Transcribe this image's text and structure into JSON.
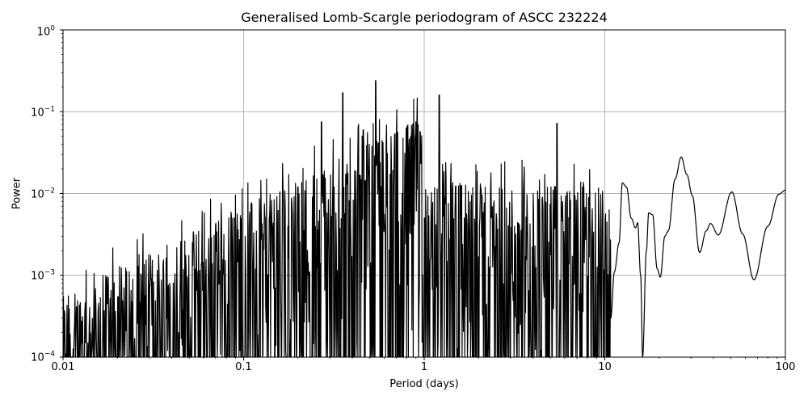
{
  "chart_data": {
    "type": "line",
    "title": "Generalised Lomb-Scargle periodogram of ASCC 232224",
    "xlabel": "Period (days)",
    "ylabel": "Power",
    "xscale": "log",
    "yscale": "log",
    "xlim": [
      0.01,
      100
    ],
    "ylim": [
      0.0001,
      1
    ],
    "grid": true,
    "legend": null,
    "line_color": "#000000",
    "x_ticks": [
      {
        "value": 0.01,
        "label": "0.01"
      },
      {
        "value": 0.1,
        "label": "0.1"
      },
      {
        "value": 1,
        "label": "1"
      },
      {
        "value": 10,
        "label": "10"
      },
      {
        "value": 100,
        "label": "100"
      }
    ],
    "y_ticks": [
      {
        "value": 1,
        "base": "10",
        "exp": "0"
      },
      {
        "value": 0.1,
        "base": "10",
        "exp": "−1"
      },
      {
        "value": 0.01,
        "base": "10",
        "exp": "−2"
      },
      {
        "value": 0.001,
        "base": "10",
        "exp": "−3"
      },
      {
        "value": 0.0001,
        "base": "10",
        "exp": "−4"
      }
    ],
    "notable_peaks": [
      {
        "period": 0.2,
        "power": 0.012
      },
      {
        "period": 0.27,
        "power": 0.075
      },
      {
        "period": 0.355,
        "power": 0.17
      },
      {
        "period": 0.46,
        "power": 0.06
      },
      {
        "period": 0.54,
        "power": 0.24
      },
      {
        "period": 0.95,
        "power": 0.057
      },
      {
        "period": 1.21,
        "power": 0.16
      },
      {
        "period": 5.45,
        "power": 0.072
      },
      {
        "period": 12.5,
        "power": 0.0135
      },
      {
        "period": 17.5,
        "power": 0.0058
      },
      {
        "period": 26.5,
        "power": 0.028
      },
      {
        "period": 38.5,
        "power": 0.0043
      },
      {
        "period": 50.5,
        "power": 0.0105
      },
      {
        "period": 100,
        "power": 0.011
      }
    ],
    "smooth_tail": [
      {
        "period": 10.8,
        "power": 0.0003
      },
      {
        "period": 11.3,
        "power": 0.0011
      },
      {
        "period": 12.0,
        "power": 0.0025
      },
      {
        "period": 12.5,
        "power": 0.0135
      },
      {
        "period": 13.2,
        "power": 0.012
      },
      {
        "period": 14.0,
        "power": 0.005
      },
      {
        "period": 14.8,
        "power": 0.0038
      },
      {
        "period": 15.2,
        "power": 0.0044
      },
      {
        "period": 15.8,
        "power": 0.001
      },
      {
        "period": 16.2,
        "power": 0.0001
      },
      {
        "period": 17.0,
        "power": 0.002
      },
      {
        "period": 17.5,
        "power": 0.0058
      },
      {
        "period": 18.4,
        "power": 0.0055
      },
      {
        "period": 19.5,
        "power": 0.0012
      },
      {
        "period": 20.3,
        "power": 0.00095
      },
      {
        "period": 21.5,
        "power": 0.003
      },
      {
        "period": 22.5,
        "power": 0.0035
      },
      {
        "period": 24.5,
        "power": 0.015
      },
      {
        "period": 26.5,
        "power": 0.028
      },
      {
        "period": 28.5,
        "power": 0.017
      },
      {
        "period": 30.5,
        "power": 0.0095
      },
      {
        "period": 33.5,
        "power": 0.0019
      },
      {
        "period": 36.5,
        "power": 0.0035
      },
      {
        "period": 38.5,
        "power": 0.0043
      },
      {
        "period": 42.5,
        "power": 0.0031
      },
      {
        "period": 50.5,
        "power": 0.0105
      },
      {
        "period": 58.0,
        "power": 0.0032
      },
      {
        "period": 67.0,
        "power": 0.00088
      },
      {
        "period": 80.0,
        "power": 0.004
      },
      {
        "period": 92.0,
        "power": 0.0098
      },
      {
        "period": 100.0,
        "power": 0.011
      }
    ]
  }
}
